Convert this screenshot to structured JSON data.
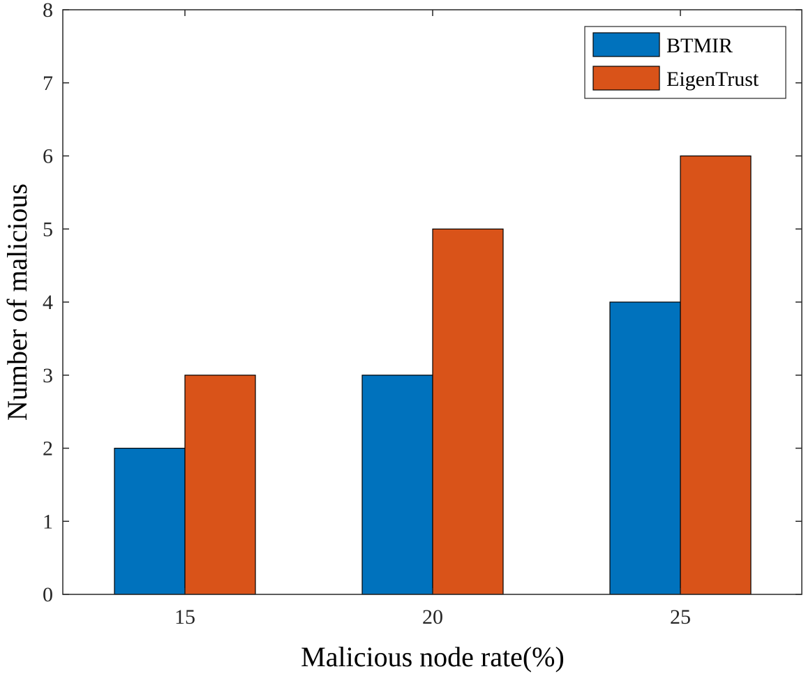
{
  "chart_data": {
    "type": "bar",
    "title": "",
    "xlabel": "Malicious node rate(%)",
    "ylabel": "Number of malicious",
    "categories": [
      "15",
      "20",
      "25"
    ],
    "series": [
      {
        "name": "BTMIR",
        "values": [
          2,
          3,
          4
        ],
        "color": "#0072BD"
      },
      {
        "name": "EigenTrust",
        "values": [
          3,
          5,
          6
        ],
        "color": "#D95319"
      }
    ],
    "ylim": [
      0,
      8
    ],
    "yticks": [
      "0",
      "1",
      "2",
      "3",
      "4",
      "5",
      "6",
      "7",
      "8"
    ],
    "grid": false,
    "legend_position": "top-right"
  }
}
